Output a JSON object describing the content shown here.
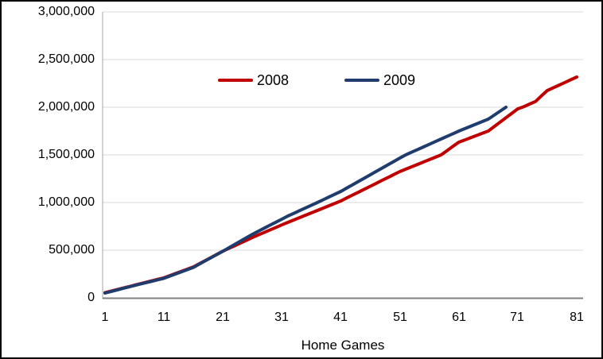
{
  "chart_data": {
    "type": "line",
    "title": "",
    "xlabel": "Home Games",
    "ylabel": "",
    "x_tick_labels": [
      "1",
      "11",
      "21",
      "31",
      "41",
      "51",
      "61",
      "71",
      "81"
    ],
    "y_tick_labels": [
      "3,000,000",
      "2,500,000",
      "2,000,000",
      "1,500,000",
      "1,000,000",
      "500,000",
      "0"
    ],
    "xlim": [
      1,
      81
    ],
    "ylim": [
      0,
      3000000
    ],
    "grid": "horizontal",
    "legend_position": "top-center-inside",
    "series": [
      {
        "name": "2008",
        "color": "#C00000",
        "values": [
          55000,
          71000,
          86000,
          102000,
          117000,
          133000,
          148000,
          164000,
          179000,
          195000,
          210000,
          233000,
          256000,
          279000,
          302000,
          325000,
          358000,
          391000,
          424000,
          457000,
          490000,
          519000,
          547000,
          576000,
          604000,
          633000,
          660000,
          686000,
          713000,
          739000,
          766000,
          792000,
          817000,
          842000,
          867000,
          892000,
          917000,
          942000,
          967000,
          992000,
          1017000,
          1048000,
          1079000,
          1109000,
          1140000,
          1171000,
          1202000,
          1233000,
          1263000,
          1294000,
          1325000,
          1350000,
          1375000,
          1400000,
          1425000,
          1450000,
          1475000,
          1500000,
          1544000,
          1589000,
          1633000,
          1656000,
          1680000,
          1703000,
          1727000,
          1750000,
          1797000,
          1843000,
          1890000,
          1937000,
          1983000,
          2005000,
          2033000,
          2060000,
          2118000,
          2175000,
          2203000,
          2232000,
          2260000,
          2289000,
          2317000
        ]
      },
      {
        "name": "2009",
        "color": "#1F3C6E",
        "values": [
          50000,
          66000,
          82000,
          98000,
          114000,
          130000,
          145000,
          160000,
          175000,
          190000,
          205000,
          228000,
          251000,
          274000,
          297000,
          320000,
          354000,
          388000,
          422000,
          456000,
          490000,
          525000,
          561000,
          596000,
          632000,
          667000,
          699000,
          731000,
          763000,
          794000,
          826000,
          858000,
          886000,
          915000,
          943000,
          972000,
          1000000,
          1029000,
          1059000,
          1088000,
          1117000,
          1152000,
          1187000,
          1222000,
          1257000,
          1292000,
          1327000,
          1362000,
          1397000,
          1432000,
          1467000,
          1500000,
          1528000,
          1556000,
          1583000,
          1611000,
          1639000,
          1667000,
          1694000,
          1722000,
          1750000,
          1775000,
          1800000,
          1825000,
          1850000,
          1875000,
          1917000,
          1958000,
          2000000
        ]
      }
    ]
  }
}
